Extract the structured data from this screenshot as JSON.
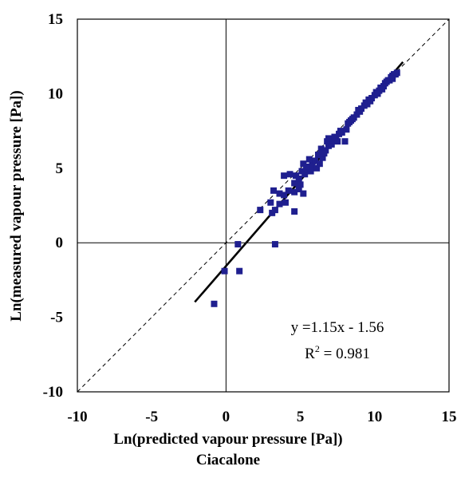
{
  "chart_data": {
    "type": "scatter",
    "title": "",
    "subtitle": "Ciacalone",
    "xlabel": "Ln(predicted vapour pressure [Pa])",
    "ylabel": "Ln(measured vapour pressure [Pa])",
    "xlim": [
      -10,
      15
    ],
    "ylim": [
      -10,
      15
    ],
    "x_ticks": [
      "-10",
      "-5",
      "0",
      "5",
      "10",
      "15"
    ],
    "y_ticks": [
      "-10",
      "-5",
      "0",
      "5",
      "10",
      "15"
    ],
    "grid": false,
    "legend": "none",
    "marker_color": "#1f1f8f",
    "points": [
      [
        -0.8,
        -4.1
      ],
      [
        -0.1,
        -1.9
      ],
      [
        0.9,
        -1.9
      ],
      [
        0.8,
        -0.1
      ],
      [
        3.3,
        -0.1
      ],
      [
        2.3,
        2.2
      ],
      [
        3.1,
        2.0
      ],
      [
        3.3,
        2.2
      ],
      [
        4.6,
        2.1
      ],
      [
        3.0,
        2.7
      ],
      [
        3.6,
        2.6
      ],
      [
        4.0,
        2.7
      ],
      [
        3.2,
        3.5
      ],
      [
        3.6,
        3.3
      ],
      [
        3.9,
        3.2
      ],
      [
        4.2,
        3.5
      ],
      [
        4.6,
        3.4
      ],
      [
        4.9,
        3.6
      ],
      [
        5.2,
        3.3
      ],
      [
        5.0,
        3.9
      ],
      [
        3.9,
        4.5
      ],
      [
        4.3,
        4.6
      ],
      [
        4.7,
        4.5
      ],
      [
        4.6,
        4.0
      ],
      [
        4.9,
        4.3
      ],
      [
        5.1,
        4.8
      ],
      [
        5.3,
        4.6
      ],
      [
        5.5,
        4.9
      ],
      [
        5.2,
        5.3
      ],
      [
        5.6,
        5.6
      ],
      [
        5.8,
        5.2
      ],
      [
        5.7,
        4.8
      ],
      [
        6.0,
        5.5
      ],
      [
        6.1,
        5.0
      ],
      [
        6.3,
        5.3
      ],
      [
        6.2,
        5.9
      ],
      [
        6.5,
        5.7
      ],
      [
        6.4,
        6.3
      ],
      [
        6.7,
        6.2
      ],
      [
        6.8,
        6.8
      ],
      [
        6.9,
        6.5
      ],
      [
        7.1,
        6.6
      ],
      [
        7.0,
        6.9
      ],
      [
        7.2,
        6.9
      ],
      [
        7.4,
        7.0
      ],
      [
        7.5,
        6.8
      ],
      [
        7.6,
        7.3
      ],
      [
        7.8,
        7.4
      ],
      [
        8.0,
        6.8
      ],
      [
        8.1,
        7.6
      ],
      [
        8.2,
        8.0
      ],
      [
        8.4,
        8.2
      ],
      [
        8.6,
        8.4
      ],
      [
        8.8,
        8.6
      ],
      [
        8.9,
        8.9
      ],
      [
        9.1,
        9.0
      ],
      [
        9.3,
        9.2
      ],
      [
        9.4,
        9.4
      ],
      [
        9.6,
        9.6
      ],
      [
        9.8,
        9.7
      ],
      [
        10.0,
        9.9
      ],
      [
        10.1,
        10.1
      ],
      [
        10.3,
        10.2
      ],
      [
        10.4,
        10.4
      ],
      [
        10.6,
        10.5
      ],
      [
        10.7,
        10.7
      ],
      [
        10.8,
        10.8
      ],
      [
        11.0,
        10.9
      ],
      [
        11.1,
        11.1
      ],
      [
        11.2,
        11.2
      ],
      [
        11.3,
        11.3
      ],
      [
        11.4,
        11.3
      ],
      [
        11.5,
        11.4
      ],
      [
        9.0,
        8.8
      ],
      [
        9.5,
        9.3
      ],
      [
        10.2,
        10.0
      ],
      [
        10.9,
        10.9
      ],
      [
        8.3,
        8.1
      ],
      [
        7.7,
        7.5
      ],
      [
        6.6,
        6.0
      ],
      [
        5.4,
        5.1
      ],
      [
        6.9,
        7.0
      ],
      [
        7.3,
        7.1
      ],
      [
        8.5,
        8.3
      ],
      [
        9.7,
        9.5
      ],
      [
        10.5,
        10.3
      ],
      [
        11.2,
        11.0
      ]
    ],
    "diagonal": {
      "name": "y = x",
      "from": [
        -10,
        -10
      ],
      "to": [
        15,
        15
      ],
      "style": "dashed"
    },
    "fit": {
      "slope": 1.15,
      "intercept": -1.56,
      "x_range": [
        -2.1,
        11.9
      ]
    },
    "annotations": {
      "equation": "y =1.15x - 1.56",
      "r2_label": "R",
      "r2_sup": "2",
      "r2_value": " = 0.981"
    }
  }
}
